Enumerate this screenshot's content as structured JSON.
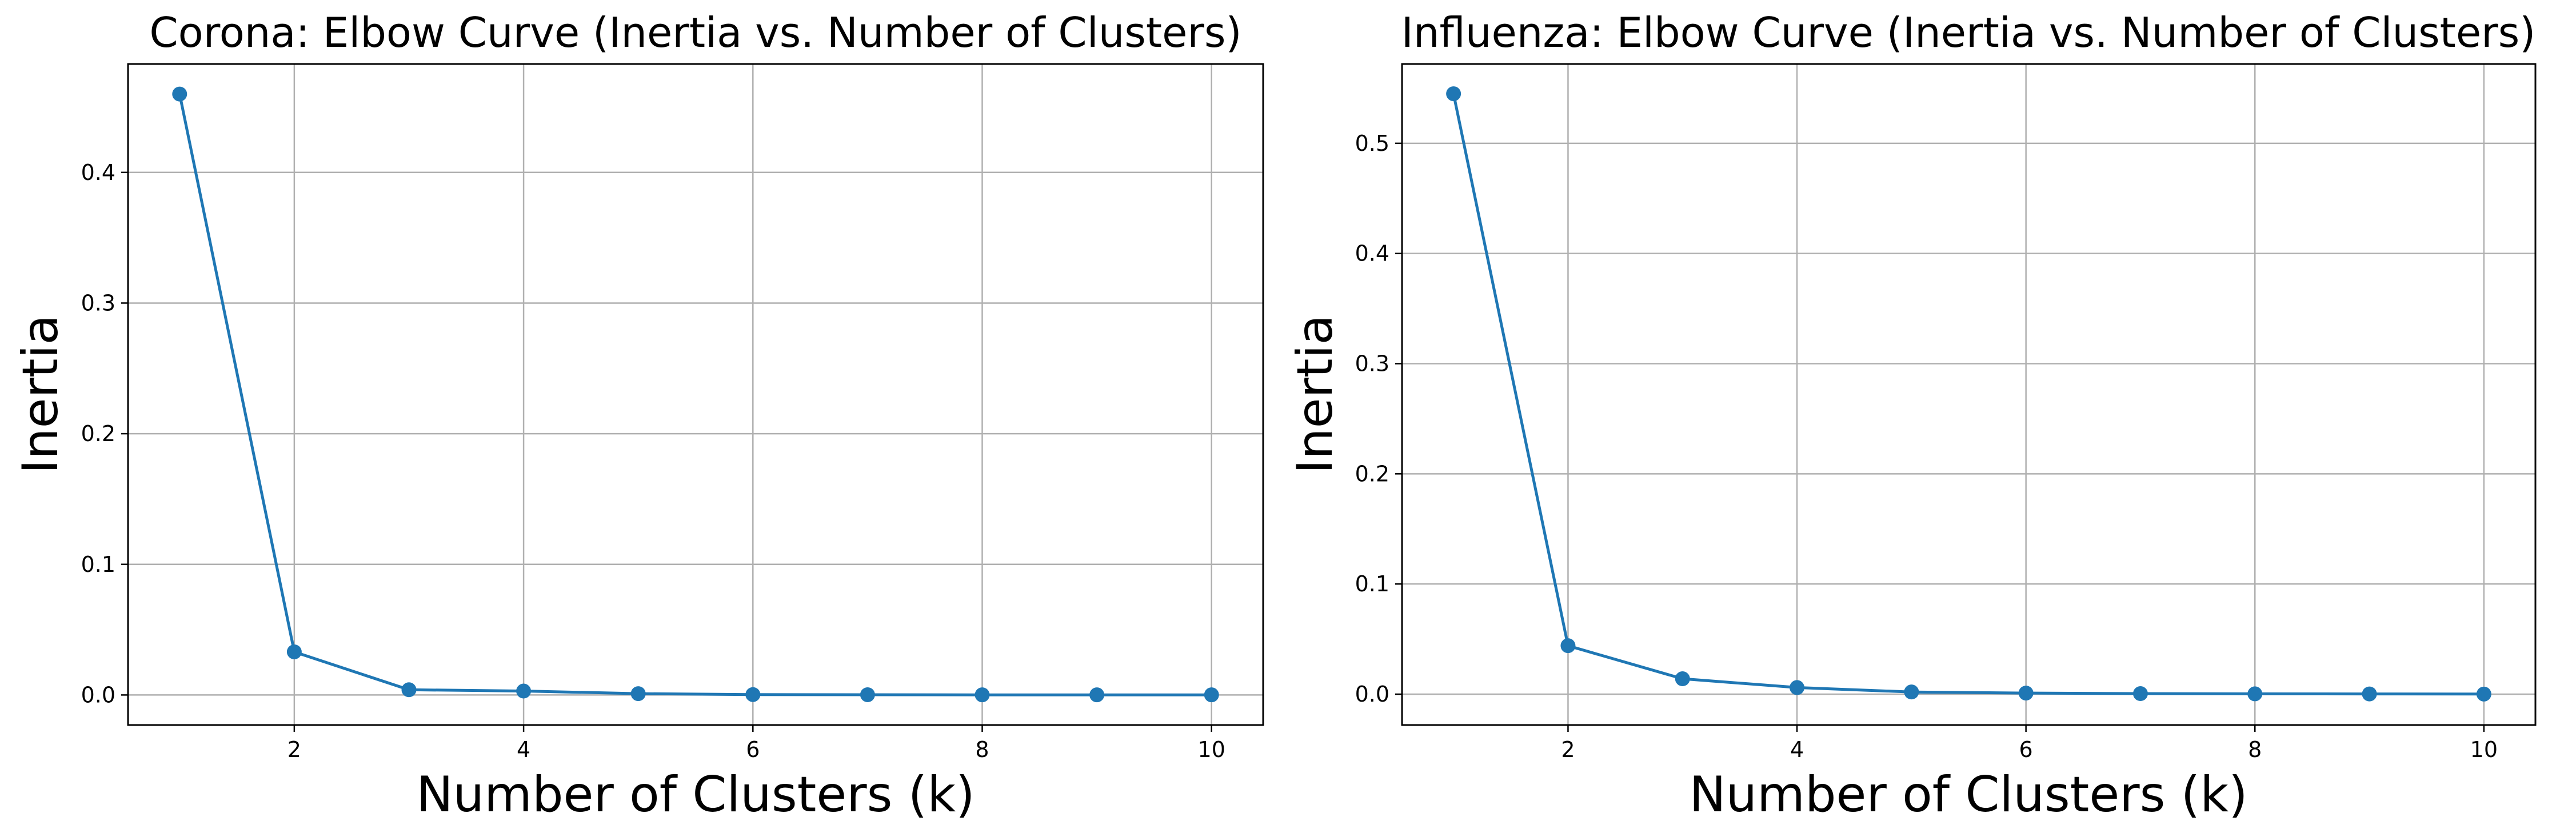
{
  "colors": {
    "series": "#1f77b4",
    "grid": "#b0b0b0",
    "axes": "#000000",
    "background": "#ffffff"
  },
  "chart_data": [
    {
      "type": "line",
      "title": "Corona: Elbow Curve (Inertia vs. Number of Clusters)",
      "xlabel": "Number of Clusters (k)",
      "ylabel": "Inertia",
      "xlim": [
        0.55,
        10.45
      ],
      "ylim": [
        -0.023,
        0.483
      ],
      "xticks": [
        2,
        4,
        6,
        8,
        10
      ],
      "yticks": [
        0.0,
        0.1,
        0.2,
        0.3,
        0.4
      ],
      "ytick_labels": [
        "0.0",
        "0.1",
        "0.2",
        "0.3",
        "0.4"
      ],
      "grid": true,
      "marker": "circle",
      "x": [
        1,
        2,
        3,
        4,
        5,
        6,
        7,
        8,
        9,
        10
      ],
      "series": [
        {
          "values": [
            0.46,
            0.033,
            0.004,
            0.003,
            0.001,
            0.0003,
            0.0002,
            0.0001,
            0.0001,
            0.0001
          ]
        }
      ]
    },
    {
      "type": "line",
      "title": "Influenza: Elbow Curve (Inertia vs. Number of Clusters)",
      "xlabel": "Number of Clusters (k)",
      "ylabel": "Inertia",
      "xlim": [
        0.55,
        10.45
      ],
      "ylim": [
        -0.028,
        0.572
      ],
      "xticks": [
        2,
        4,
        6,
        8,
        10
      ],
      "yticks": [
        0.0,
        0.1,
        0.2,
        0.3,
        0.4,
        0.5
      ],
      "ytick_labels": [
        "0.0",
        "0.1",
        "0.2",
        "0.3",
        "0.4",
        "0.5"
      ],
      "grid": true,
      "marker": "circle",
      "x": [
        1,
        2,
        3,
        4,
        5,
        6,
        7,
        8,
        9,
        10
      ],
      "series": [
        {
          "values": [
            0.545,
            0.044,
            0.014,
            0.006,
            0.002,
            0.001,
            0.0005,
            0.0003,
            0.0002,
            0.0001
          ]
        }
      ]
    }
  ]
}
